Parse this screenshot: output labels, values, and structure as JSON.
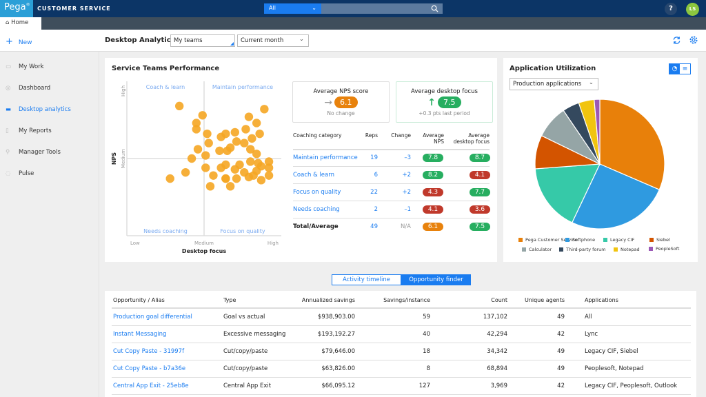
{
  "topbar": {
    "logo": "Pega",
    "app_name": "CUSTOMER SERVICE",
    "search_scope": "All",
    "help": "?",
    "avatar_initials": "LS"
  },
  "tabs": {
    "home": "Home"
  },
  "sidebar": {
    "new_label": "New",
    "items": [
      {
        "label": "My Work",
        "icon": "briefcase-icon"
      },
      {
        "label": "Dashboard",
        "icon": "gauge-icon"
      },
      {
        "label": "Desktop analytics",
        "icon": "monitor-icon",
        "active": true
      },
      {
        "label": "My Reports",
        "icon": "document-icon"
      },
      {
        "label": "Manager Tools",
        "icon": "wrench-icon"
      },
      {
        "label": "Pulse",
        "icon": "chat-bubble-icon"
      }
    ]
  },
  "header": {
    "title": "Desktop Analytics",
    "team_filter": "My teams",
    "period_filter": "Current month"
  },
  "colors": {
    "accent": "#1a7cf0",
    "orange": "#e8820c",
    "green": "#27ae60",
    "red": "#c0392b",
    "navy": "#0c3566"
  },
  "performance": {
    "title": "Service Teams Performance",
    "kpis": [
      {
        "title": "Average NPS score",
        "value": "6.1",
        "note": "No change",
        "color": "#e8820c",
        "icon": "arrow-right-icon"
      },
      {
        "title": "Average desktop focus",
        "value": "7.5",
        "note": "+0.3 pts last period",
        "color": "#27ae60",
        "icon": "arrow-up-icon"
      }
    ],
    "columns": [
      "Coaching category",
      "Reps",
      "Change",
      "Average NPS",
      "Average desktop focus"
    ],
    "rows": [
      {
        "category": "Maintain performance",
        "reps": "19",
        "change": "–3",
        "nps": "7.8",
        "nps_color": "#27ae60",
        "focus": "8.7",
        "focus_color": "#27ae60"
      },
      {
        "category": "Coach & learn",
        "reps": "6",
        "change": "+2",
        "nps": "8.2",
        "nps_color": "#27ae60",
        "focus": "4.1",
        "focus_color": "#c0392b"
      },
      {
        "category": "Focus on quality",
        "reps": "22",
        "change": "+2",
        "nps": "4.3",
        "nps_color": "#c0392b",
        "focus": "7.7",
        "focus_color": "#27ae60"
      },
      {
        "category": "Needs coaching",
        "reps": "2",
        "change": "–1",
        "nps": "4.1",
        "nps_color": "#c0392b",
        "focus": "3.6",
        "focus_color": "#c0392b"
      }
    ],
    "total": {
      "category": "Total/Average",
      "reps": "49",
      "change": "N/A",
      "nps": "6.1",
      "nps_color": "#e8820c",
      "focus": "7.5",
      "focus_color": "#27ae60"
    }
  },
  "chart_data": [
    {
      "type": "scatter",
      "xlabel": "Desktop focus",
      "ylabel": "NPS",
      "x_ticks": [
        "Low",
        "Medium",
        "High"
      ],
      "y_ticks": [
        "High",
        "Medium"
      ],
      "xlim": [
        0,
        10
      ],
      "ylim": [
        0,
        10
      ],
      "quadrants": {
        "top_left": "Coach & learn",
        "top_right": "Maintain performance",
        "bottom_left": "Needs coaching",
        "bottom_right": "Focus on quality"
      },
      "color": "#f5a623",
      "points": [
        [
          3.4,
          8.4
        ],
        [
          4.9,
          7.8
        ],
        [
          4.5,
          7.3
        ],
        [
          4.5,
          6.9
        ],
        [
          5.2,
          6.6
        ],
        [
          5.3,
          6.0
        ],
        [
          4.6,
          5.6
        ],
        [
          5.1,
          5.2
        ],
        [
          4.2,
          5.0
        ],
        [
          5.1,
          4.4
        ],
        [
          3.8,
          4.1
        ],
        [
          2.8,
          3.7
        ],
        [
          5.6,
          3.9
        ],
        [
          5.4,
          3.2
        ],
        [
          6.4,
          3.7
        ],
        [
          6.4,
          3.7
        ],
        [
          6.7,
          3.2
        ],
        [
          6.1,
          4.4
        ],
        [
          6.4,
          4.6
        ],
        [
          6.0,
          5.5
        ],
        [
          6.5,
          5.5
        ],
        [
          6.7,
          5.7
        ],
        [
          6.1,
          6.4
        ],
        [
          6.4,
          6.6
        ],
        [
          7.0,
          6.7
        ],
        [
          7.1,
          6.1
        ],
        [
          7.6,
          6.0
        ],
        [
          7.7,
          6.9
        ],
        [
          7.9,
          7.7
        ],
        [
          8.4,
          7.3
        ],
        [
          8.1,
          6.3
        ],
        [
          8.6,
          6.6
        ],
        [
          8.9,
          8.2
        ],
        [
          8.0,
          5.6
        ],
        [
          8.4,
          5.3
        ],
        [
          7.0,
          4.3
        ],
        [
          7.3,
          4.6
        ],
        [
          7.1,
          3.7
        ],
        [
          7.6,
          4.1
        ],
        [
          7.9,
          3.8
        ],
        [
          8.0,
          4.8
        ],
        [
          8.2,
          3.9
        ],
        [
          8.4,
          4.2
        ],
        [
          8.5,
          4.7
        ],
        [
          8.7,
          4.5
        ],
        [
          8.7,
          3.6
        ],
        [
          9.2,
          4.8
        ],
        [
          9.2,
          4.4
        ],
        [
          9.2,
          3.9
        ]
      ]
    },
    {
      "type": "pie",
      "title": "Application Utilization",
      "filter": "Production applications",
      "slices": [
        {
          "name": "Pega Customer Service",
          "value": 31.5,
          "color": "#e8800a"
        },
        {
          "name": "Softphone",
          "value": 25.6,
          "color": "#2f9ae0"
        },
        {
          "name": "Legacy CIF",
          "value": 16.8,
          "color": "#36c9a8"
        },
        {
          "name": "Siebel",
          "value": 8.4,
          "color": "#d35400"
        },
        {
          "name": "Calculator",
          "value": 8.3,
          "color": "#95a5a6"
        },
        {
          "name": "Third-party forum",
          "value": 4.2,
          "color": "#34495e"
        },
        {
          "name": "Notepad",
          "value": 3.9,
          "color": "#f1c40f"
        },
        {
          "name": "PeopleSoft",
          "value": 1.4,
          "color": "#9b59b6"
        }
      ]
    }
  ],
  "views": {
    "activity": "Activity timeline",
    "opportunity": "Opportunity finder",
    "selected": "Opportunity finder"
  },
  "opportunities": {
    "columns": [
      "Opportunity / Alias",
      "Type",
      "Annualized savings",
      "Savings/instance",
      "Count",
      "Unique agents",
      "Applications"
    ],
    "rows": [
      [
        "Production goal differential",
        "Goal vs actual",
        "$938,903.00",
        "59",
        "137,102",
        "49",
        "All"
      ],
      [
        "Instant Messaging",
        "Excessive messaging",
        "$193,192.27",
        "40",
        "42,294",
        "42",
        "Lync"
      ],
      [
        "Cut Copy Paste - 31997f",
        "Cut/copy/paste",
        "$79,646.00",
        "18",
        "34,342",
        "49",
        "Legacy CIF, Siebel"
      ],
      [
        "Cut Copy Paste - b7a36e",
        "Cut/copy/paste",
        "$63,826.00",
        "8",
        "68,894",
        "49",
        "Peoplesoft, Notepad"
      ],
      [
        "Central App Exit - 25eb8e",
        "Central App Exit",
        "$66,095.12",
        "127",
        "3,969",
        "42",
        "Legacy CIF, Peoplesoft, Outlook"
      ]
    ]
  }
}
